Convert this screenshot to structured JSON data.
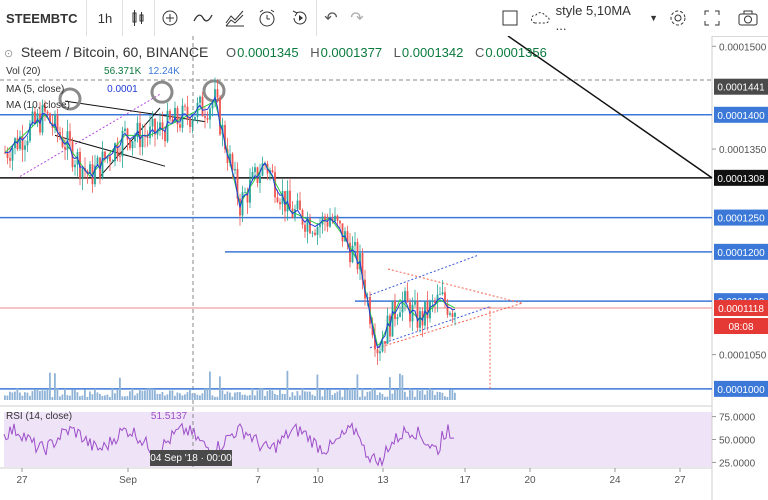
{
  "toolbar": {
    "symbol": "STEEMBTC",
    "interval": "1h",
    "style_label": "style 5,10MA ..."
  },
  "legend": {
    "title": "Steem / Bitcoin, 60, BINANCE",
    "o_label": "O",
    "o": "0.0001345",
    "h_label": "H",
    "h": "0.0001377",
    "l_label": "L",
    "l": "0.0001342",
    "c_label": "C",
    "c": "0.0001356",
    "vol_label": "Vol (20)",
    "vol1": "56.371K",
    "vol2": "12.24K",
    "ma5_label": "MA (5, close)",
    "ma5_value": "0.0001",
    "ma10_label": "MA (10, close)",
    "rsi_label": "RSI (14, close)",
    "rsi_value": "51.5137"
  },
  "price_axis": {
    "ticks": [
      "0.0001500",
      "0.0001350",
      "0.0001050"
    ],
    "highlight_labels": [
      {
        "text": "0.0001441",
        "kind": "cross"
      },
      {
        "text": "0.0001400",
        "kind": "blue"
      },
      {
        "text": "0.0001308",
        "kind": "black"
      },
      {
        "text": "0.0001250",
        "kind": "blue"
      },
      {
        "text": "0.0001200",
        "kind": "blue"
      },
      {
        "text": "0.0001128",
        "kind": "blue"
      },
      {
        "text": "0.0001118",
        "kind": "red"
      },
      {
        "text": "08:08",
        "kind": "red"
      },
      {
        "text": "0.0001000",
        "kind": "blue"
      }
    ]
  },
  "rsi_axis": [
    "75.0000",
    "50.0000",
    "25.0000"
  ],
  "time_axis": [
    "27",
    "Sep",
    "7",
    "10",
    "13",
    "17",
    "20",
    "24",
    "27"
  ],
  "crosshair_time": "04 Sep '18 · 00:00",
  "colors": {
    "blue_line": "#3b78d8",
    "black_line": "#111111",
    "red_label": "#e53935",
    "up": "#26a69a",
    "down": "#ef5350",
    "rsi": "#9c4ec9",
    "ma5": "#1f3bd8",
    "ma10": "#2ecc40"
  },
  "chart_data": {
    "type": "candlestick",
    "y_range": [
      0.0001,
      0.0001515
    ],
    "horizontal_levels": [
      0.0001441,
      0.00014,
      0.0001308,
      0.000125,
      0.00012,
      0.0001128,
      0.0001118,
      0.0001
    ],
    "close_path": [
      {
        "x": "27",
        "y": 0.0001345
      },
      {
        "x": "29",
        "y": 0.00014
      },
      {
        "x": "30",
        "y": 0.000131
      },
      {
        "x": "Sep",
        "y": 0.000137
      },
      {
        "x": "3",
        "y": 0.000137
      },
      {
        "x": "4",
        "y": 0.000142
      },
      {
        "x": "5",
        "y": 0.000127
      },
      {
        "x": "6",
        "y": 0.000133
      },
      {
        "x": "7",
        "y": 0.000126
      },
      {
        "x": "8",
        "y": 0.000124
      },
      {
        "x": "9",
        "y": 0.000125
      },
      {
        "x": "10",
        "y": 0.000122
      },
      {
        "x": "11",
        "y": 0.000118
      },
      {
        "x": "12",
        "y": 0.000106
      },
      {
        "x": "13",
        "y": 0.000113
      },
      {
        "x": "14",
        "y": 0.00011
      },
      {
        "x": "15",
        "y": 0.000113
      },
      {
        "x": "16",
        "y": 0.0001118
      }
    ],
    "rsi_range": [
      20,
      80
    ],
    "rsi_last": 51.5137
  }
}
